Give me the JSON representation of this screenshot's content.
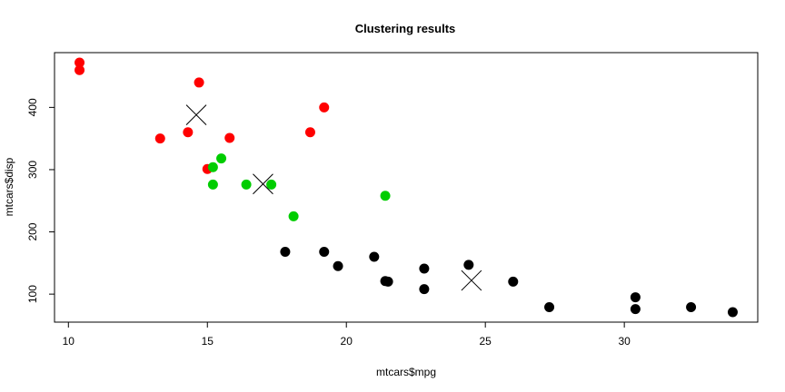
{
  "chart_data": {
    "type": "scatter",
    "title": "Clustering results",
    "xlabel": "mtcars$mpg",
    "ylabel": "mtcars$disp",
    "xlim": [
      9.5,
      34.8
    ],
    "ylim": [
      55,
      488
    ],
    "x_ticks": [
      10,
      15,
      20,
      25,
      30
    ],
    "y_ticks": [
      100,
      200,
      300,
      400
    ],
    "grid": false,
    "legend": "none",
    "colors": {
      "red": "#ff0000",
      "green": "#00cd00",
      "black": "#000000",
      "centroid": "#000000"
    },
    "series": [
      {
        "color": "red",
        "points": [
          {
            "x": 10.4,
            "y": 472
          },
          {
            "x": 10.4,
            "y": 460
          },
          {
            "x": 14.7,
            "y": 440
          },
          {
            "x": 13.3,
            "y": 350
          },
          {
            "x": 14.3,
            "y": 360
          },
          {
            "x": 15.8,
            "y": 351
          },
          {
            "x": 15.0,
            "y": 301
          },
          {
            "x": 18.7,
            "y": 360
          },
          {
            "x": 19.2,
            "y": 400
          }
        ]
      },
      {
        "color": "green",
        "points": [
          {
            "x": 15.2,
            "y": 304
          },
          {
            "x": 15.5,
            "y": 318
          },
          {
            "x": 15.2,
            "y": 276
          },
          {
            "x": 16.4,
            "y": 276
          },
          {
            "x": 17.3,
            "y": 276
          },
          {
            "x": 18.1,
            "y": 225
          },
          {
            "x": 21.4,
            "y": 258
          }
        ]
      },
      {
        "color": "black",
        "points": [
          {
            "x": 17.8,
            "y": 168
          },
          {
            "x": 19.2,
            "y": 168
          },
          {
            "x": 19.7,
            "y": 145
          },
          {
            "x": 21.0,
            "y": 160
          },
          {
            "x": 21.4,
            "y": 121
          },
          {
            "x": 21.5,
            "y": 120
          },
          {
            "x": 22.8,
            "y": 141
          },
          {
            "x": 22.8,
            "y": 108
          },
          {
            "x": 24.4,
            "y": 147
          },
          {
            "x": 26.0,
            "y": 120
          },
          {
            "x": 27.3,
            "y": 79
          },
          {
            "x": 30.4,
            "y": 95
          },
          {
            "x": 30.4,
            "y": 76
          },
          {
            "x": 32.4,
            "y": 79
          },
          {
            "x": 33.9,
            "y": 71
          }
        ]
      }
    ],
    "centroids": [
      {
        "x": 14.6,
        "y": 388
      },
      {
        "x": 17.0,
        "y": 277
      },
      {
        "x": 24.5,
        "y": 122
      }
    ]
  }
}
